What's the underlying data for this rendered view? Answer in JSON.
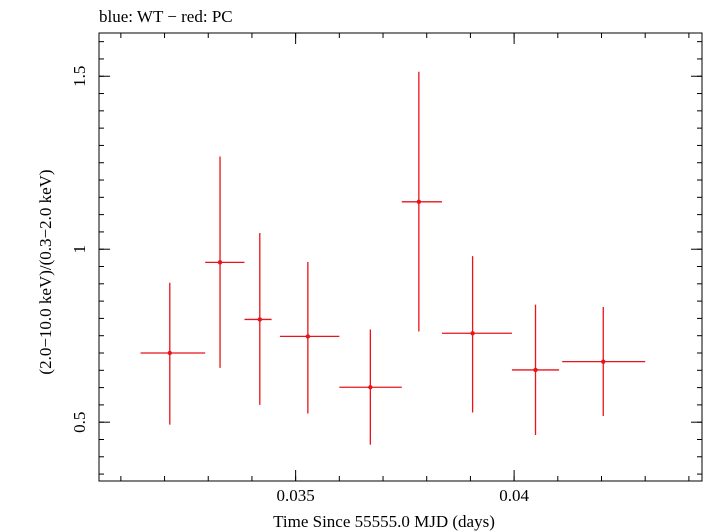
{
  "chart_data": {
    "type": "scatter",
    "title": "blue: WT − red: PC",
    "xlabel": "Time Since 55555.0 MJD (days)",
    "ylabel": "(2.0−10.0 keV)/(0.3−2.0 keV)",
    "xlim": [
      0.0305,
      0.0443
    ],
    "ylim": [
      0.33,
      1.625
    ],
    "x_ticks": [
      {
        "value": 0.035,
        "label": "0.035"
      },
      {
        "value": 0.04,
        "label": "0.04"
      }
    ],
    "y_ticks": [
      {
        "value": 0.5,
        "label": "0.5"
      },
      {
        "value": 1.0,
        "label": "1"
      },
      {
        "value": 1.5,
        "label": "1.5"
      }
    ],
    "grid": false,
    "series": [
      {
        "color": "#e8141a",
        "points": [
          {
            "x": 0.03212,
            "y": 0.7,
            "x_lo": 0.03145,
            "x_hi": 0.03293,
            "y_lo": 0.493,
            "y_hi": 0.903
          },
          {
            "x": 0.03327,
            "y": 0.962,
            "x_lo": 0.03293,
            "x_hi": 0.03383,
            "y_lo": 0.657,
            "y_hi": 1.268
          },
          {
            "x": 0.03418,
            "y": 0.797,
            "x_lo": 0.03383,
            "x_hi": 0.03445,
            "y_lo": 0.55,
            "y_hi": 1.047
          },
          {
            "x": 0.03528,
            "y": 0.748,
            "x_lo": 0.03464,
            "x_hi": 0.036,
            "y_lo": 0.525,
            "y_hi": 0.963
          },
          {
            "x": 0.03671,
            "y": 0.601,
            "x_lo": 0.036,
            "x_hi": 0.03743,
            "y_lo": 0.435,
            "y_hi": 0.768
          },
          {
            "x": 0.03782,
            "y": 1.137,
            "x_lo": 0.03743,
            "x_hi": 0.03835,
            "y_lo": 0.762,
            "y_hi": 1.513
          },
          {
            "x": 0.03905,
            "y": 0.757,
            "x_lo": 0.03835,
            "x_hi": 0.03995,
            "y_lo": 0.528,
            "y_hi": 0.98
          },
          {
            "x": 0.04049,
            "y": 0.651,
            "x_lo": 0.03995,
            "x_hi": 0.04103,
            "y_lo": 0.463,
            "y_hi": 0.84
          },
          {
            "x": 0.04204,
            "y": 0.675,
            "x_lo": 0.0411,
            "x_hi": 0.043,
            "y_lo": 0.518,
            "y_hi": 0.833
          }
        ]
      }
    ]
  }
}
